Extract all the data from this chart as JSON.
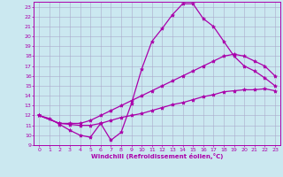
{
  "background_color": "#cbe8f0",
  "grid_color": "#aaaacc",
  "line_color": "#aa00aa",
  "marker": "*",
  "marker_size": 3,
  "lw": 0.9,
  "xlim": [
    -0.5,
    23.5
  ],
  "ylim": [
    9,
    23.5
  ],
  "xticks": [
    0,
    1,
    2,
    3,
    4,
    5,
    6,
    7,
    8,
    9,
    10,
    11,
    12,
    13,
    14,
    15,
    16,
    17,
    18,
    19,
    20,
    21,
    22,
    23
  ],
  "yticks": [
    9,
    10,
    11,
    12,
    13,
    14,
    15,
    16,
    17,
    18,
    19,
    20,
    21,
    22,
    23
  ],
  "xlabel": "Windchill (Refroidissement éolien,°C)",
  "line1_x": [
    0,
    1,
    2,
    3,
    4,
    5,
    6,
    7,
    8,
    9,
    10,
    11,
    12,
    13,
    14,
    15,
    16,
    17,
    18,
    19,
    20,
    21,
    22,
    23
  ],
  "line1_y": [
    12,
    11.7,
    11.1,
    10.5,
    10.0,
    9.8,
    11.2,
    9.5,
    10.3,
    13.2,
    16.7,
    19.5,
    20.8,
    22.2,
    23.3,
    23.3,
    21.8,
    21.0,
    19.5,
    18.0,
    17.0,
    16.5,
    15.8,
    15.0
  ],
  "line2_x": [
    0,
    2,
    3,
    4,
    5,
    6,
    7,
    8,
    9,
    10,
    11,
    12,
    13,
    14,
    15,
    16,
    17,
    18,
    19,
    20,
    21,
    22,
    23
  ],
  "line2_y": [
    12,
    11.2,
    11.2,
    11.2,
    11.5,
    12.0,
    12.5,
    13.0,
    13.5,
    14.0,
    14.5,
    15.0,
    15.5,
    16.0,
    16.5,
    17.0,
    17.5,
    18.0,
    18.2,
    18.0,
    17.5,
    17.0,
    16.0
  ],
  "line3_x": [
    0,
    2,
    3,
    4,
    5,
    6,
    7,
    8,
    9,
    10,
    11,
    12,
    13,
    14,
    15,
    16,
    17,
    18,
    19,
    20,
    21,
    22,
    23
  ],
  "line3_y": [
    12,
    11.2,
    11.1,
    11.0,
    11.0,
    11.2,
    11.5,
    11.8,
    12.0,
    12.2,
    12.5,
    12.8,
    13.1,
    13.3,
    13.6,
    13.9,
    14.1,
    14.4,
    14.5,
    14.6,
    14.6,
    14.7,
    14.5
  ]
}
